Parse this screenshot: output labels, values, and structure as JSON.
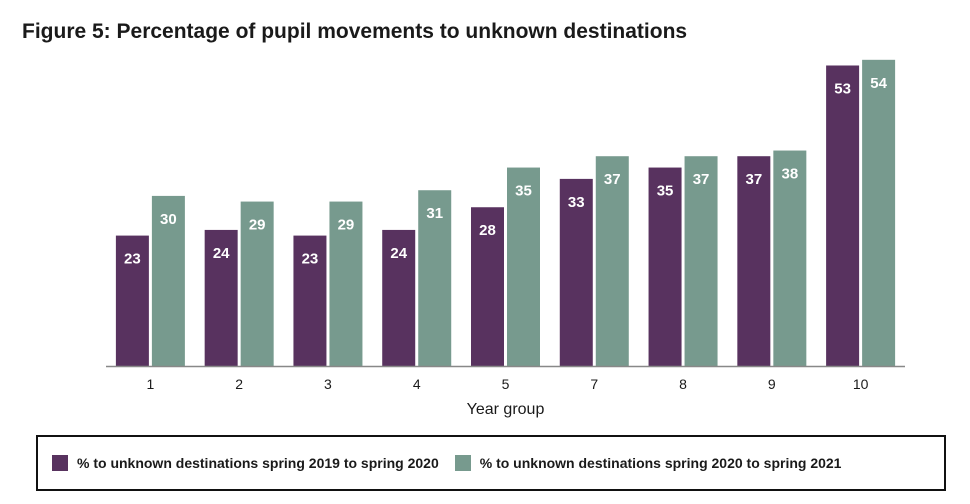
{
  "figure": {
    "title": "Figure 5:  Percentage of pupil movements to unknown destinations"
  },
  "colors": {
    "series_1": "#58325f",
    "series_2": "#779a8e",
    "axis": "#888888",
    "data_label": "#ffffff",
    "text": "#1a1a1a"
  },
  "chart_data": {
    "type": "bar",
    "title": "Figure 5:  Percentage of pupil movements to unknown destinations",
    "xlabel": "Year group",
    "ylabel": "",
    "categories": [
      "1",
      "2",
      "3",
      "4",
      "5",
      "7",
      "8",
      "9",
      "10"
    ],
    "series": [
      {
        "name": "% to unknown destinations spring 2019 to spring 2020",
        "values": [
          23,
          24,
          23,
          24,
          28,
          33,
          35,
          37,
          53
        ]
      },
      {
        "name": "% to unknown destinations spring 2020 to spring 2021",
        "values": [
          30,
          29,
          29,
          31,
          35,
          37,
          37,
          38,
          54
        ]
      }
    ],
    "ylim": [
      0,
      55
    ],
    "grid": false,
    "legend_position": "bottom"
  }
}
